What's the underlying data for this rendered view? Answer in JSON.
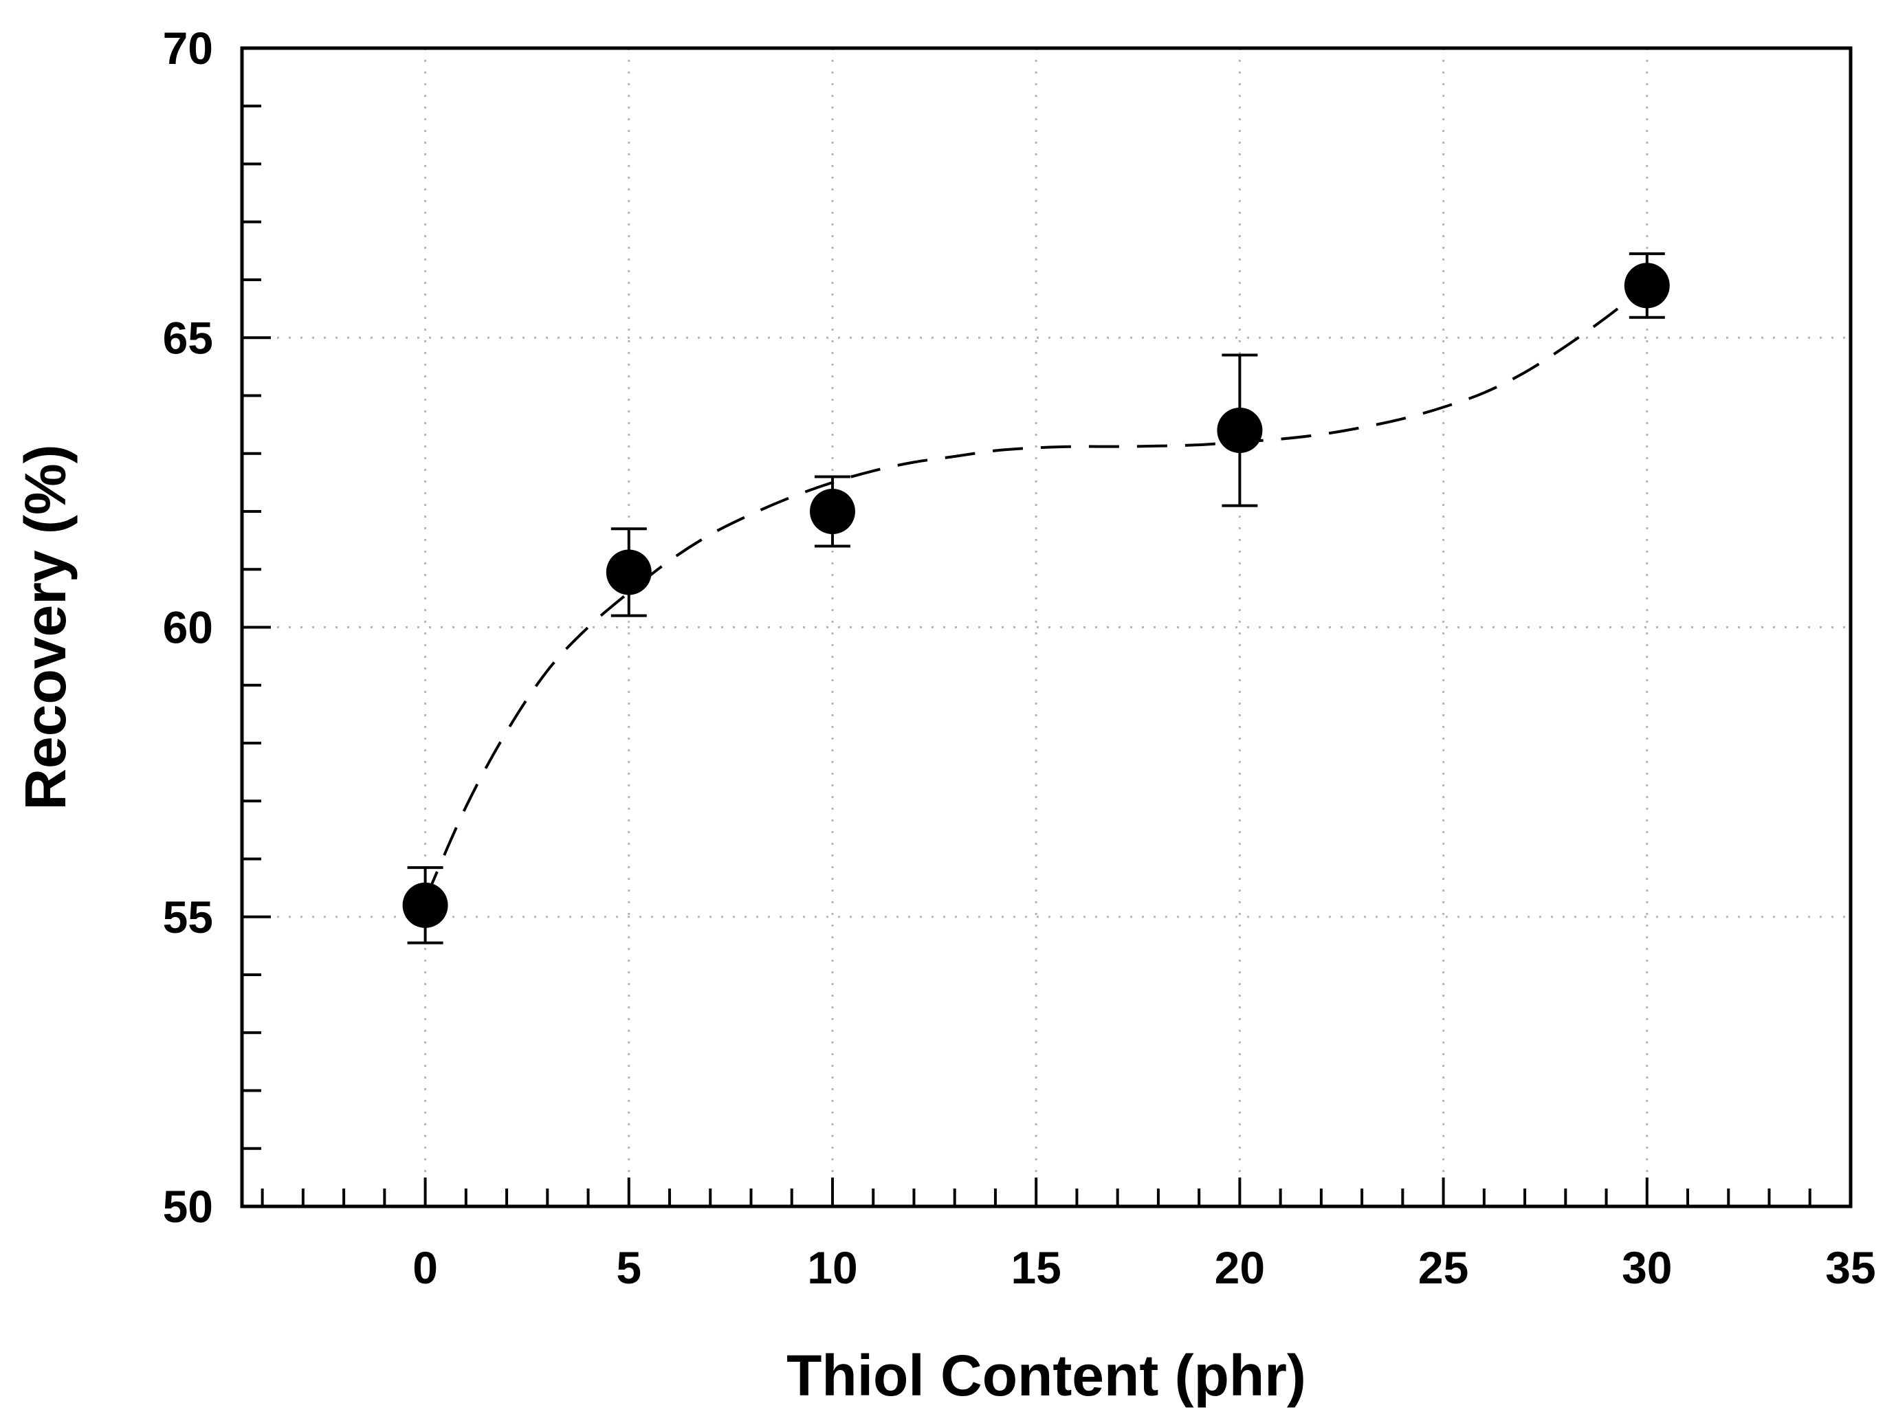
{
  "chart_data": {
    "type": "scatter",
    "title": "",
    "xlabel": "Thiol Content (phr)",
    "ylabel": "Recovery (%)",
    "xlim": [
      -4.5,
      35
    ],
    "ylim": [
      50,
      70
    ],
    "x_ticks": [
      0,
      5,
      10,
      15,
      20,
      25,
      30,
      35
    ],
    "x_tick_labels": [
      "0",
      "5",
      "10",
      "15",
      "20",
      "25",
      "30",
      "35"
    ],
    "x_minor_step": 1,
    "y_ticks": [
      50,
      55,
      60,
      65,
      70
    ],
    "y_tick_labels": [
      "50",
      "55",
      "60",
      "65",
      "70"
    ],
    "y_minor_step": 1,
    "grid": true,
    "series": [
      {
        "name": "Recovery",
        "x": [
          0,
          5,
          10,
          20,
          30
        ],
        "y": [
          55.2,
          60.95,
          62.0,
          63.4,
          65.9
        ],
        "yerr": [
          0.65,
          0.75,
          0.6,
          1.3,
          0.55
        ],
        "color": "#000000"
      }
    ],
    "trend_line": {
      "style": "dashed",
      "color": "#000000",
      "x": [
        0,
        1,
        2,
        3,
        4,
        5,
        6,
        7,
        8,
        9,
        10,
        11,
        12,
        13,
        14,
        15,
        16,
        17,
        18,
        19,
        20,
        21,
        22,
        23,
        24,
        25,
        26,
        27,
        28,
        29,
        30
      ],
      "y": [
        55.3,
        56.9,
        58.2,
        59.25,
        60.0,
        60.6,
        61.15,
        61.6,
        61.95,
        62.25,
        62.5,
        62.7,
        62.85,
        62.95,
        63.05,
        63.1,
        63.12,
        63.12,
        63.13,
        63.15,
        63.2,
        63.25,
        63.33,
        63.45,
        63.6,
        63.8,
        64.05,
        64.4,
        64.85,
        65.35,
        65.9
      ]
    }
  }
}
